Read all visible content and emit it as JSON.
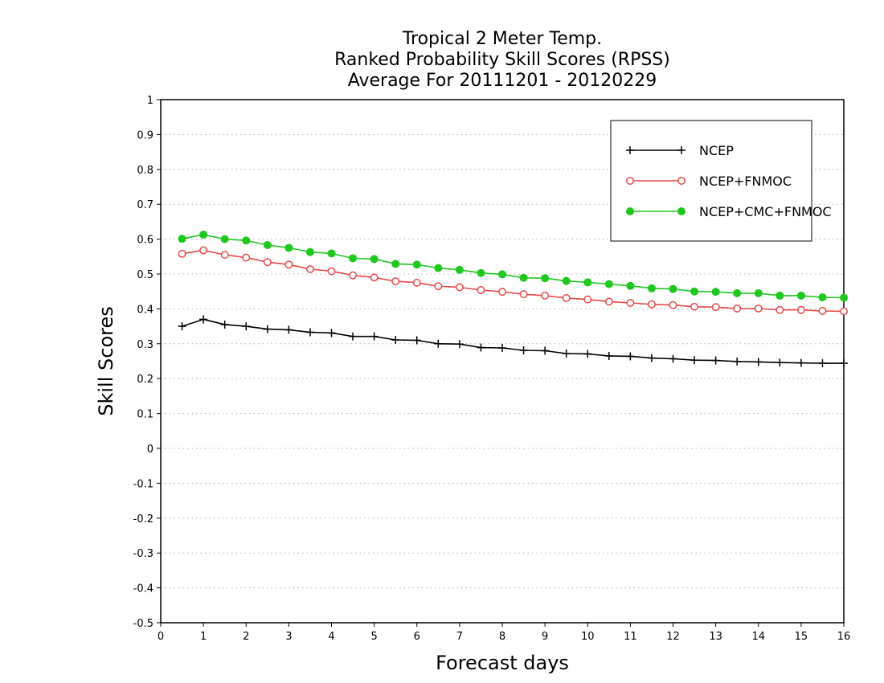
{
  "chart_data": {
    "type": "line",
    "title": [
      "Tropical 2 Meter Temp.",
      "Ranked Probability Skill Scores (RPSS)",
      "Average For 20111201 - 20120229"
    ],
    "xlabel": "Forecast days",
    "ylabel": "Skill Scores",
    "xlim": [
      0,
      16
    ],
    "ylim": [
      -0.5,
      1
    ],
    "xticks": [
      "0",
      "1",
      "2",
      "3",
      "4",
      "5",
      "6",
      "7",
      "8",
      "9",
      "10",
      "11",
      "12",
      "13",
      "14",
      "15",
      "16"
    ],
    "yticks": [
      "-0.5",
      "-0.4",
      "-0.3",
      "-0.2",
      "-0.1",
      "0",
      "0.1",
      "0.2",
      "0.3",
      "0.4",
      "0.5",
      "0.6",
      "0.7",
      "0.8",
      "0.9",
      "1"
    ],
    "grid": true,
    "legend_position": "top-right",
    "x": [
      0.5,
      1,
      1.5,
      2,
      2.5,
      3,
      3.5,
      4,
      4.5,
      5,
      5.5,
      6,
      6.5,
      7,
      7.5,
      8,
      8.5,
      9,
      9.5,
      10,
      10.5,
      11,
      11.5,
      12,
      12.5,
      13,
      13.5,
      14,
      14.5,
      15,
      15.5,
      16
    ],
    "series": [
      {
        "name": "NCEP",
        "color": "#000000",
        "marker": "plus",
        "values": [
          0.35,
          0.37,
          0.355,
          0.35,
          0.342,
          0.34,
          0.333,
          0.331,
          0.321,
          0.321,
          0.311,
          0.31,
          0.3,
          0.299,
          0.289,
          0.288,
          0.281,
          0.28,
          0.272,
          0.271,
          0.265,
          0.264,
          0.259,
          0.257,
          0.253,
          0.252,
          0.249,
          0.248,
          0.246,
          0.245,
          0.244,
          0.244
        ]
      },
      {
        "name": "NCEP+FNMOC",
        "color": "#e84848",
        "marker": "open-circle",
        "values": [
          0.558,
          0.568,
          0.555,
          0.547,
          0.534,
          0.527,
          0.514,
          0.508,
          0.496,
          0.49,
          0.479,
          0.475,
          0.465,
          0.462,
          0.454,
          0.449,
          0.442,
          0.438,
          0.431,
          0.427,
          0.421,
          0.417,
          0.413,
          0.411,
          0.406,
          0.405,
          0.401,
          0.401,
          0.397,
          0.397,
          0.394,
          0.393
        ]
      },
      {
        "name": "NCEP+CMC+FNMOC",
        "color": "#1ec81e",
        "marker": "filled-circle",
        "values": [
          0.601,
          0.613,
          0.6,
          0.596,
          0.583,
          0.575,
          0.563,
          0.559,
          0.545,
          0.543,
          0.529,
          0.527,
          0.517,
          0.512,
          0.503,
          0.499,
          0.489,
          0.488,
          0.48,
          0.476,
          0.471,
          0.466,
          0.459,
          0.457,
          0.45,
          0.449,
          0.445,
          0.445,
          0.438,
          0.438,
          0.433,
          0.432
        ]
      }
    ]
  }
}
